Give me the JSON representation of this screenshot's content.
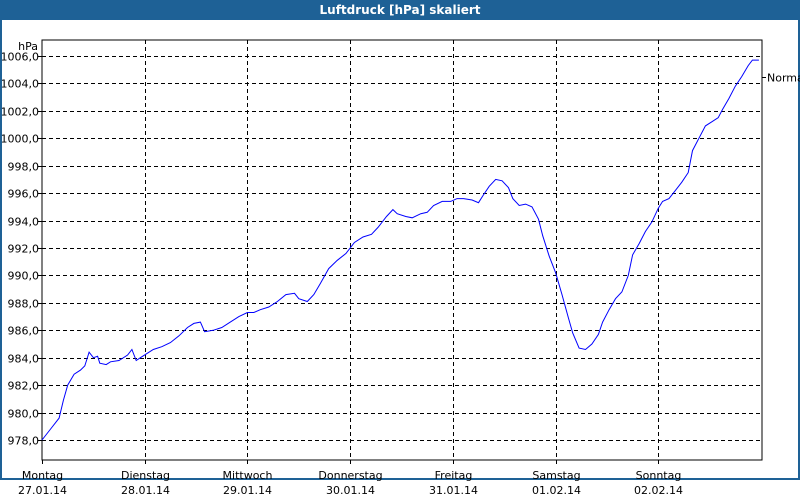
{
  "window": {
    "title": "Luftdruck [hPa] skaliert"
  },
  "colors": {
    "titlebar": "#1e6196",
    "line": "#0000ff",
    "grid": "#000000"
  },
  "chart_data": {
    "type": "line",
    "title": "Luftdruck [hPa] skaliert",
    "ylabel": "hPa",
    "ylim": [
      976.5,
      1007.2
    ],
    "yticks": [
      978,
      980,
      982,
      984,
      986,
      988,
      990,
      992,
      994,
      996,
      998,
      1000,
      1002,
      1004,
      1006
    ],
    "ytick_labels": [
      "978,0",
      "980,0",
      "982,0",
      "984,0",
      "986,0",
      "988,0",
      "990,0",
      "992,0",
      "994,0",
      "996,0",
      "998,0",
      "1000,0",
      "1002,0",
      "1004,0",
      "1006,0"
    ],
    "xlim": [
      "2014-01-27T00:00",
      "2014-02-03T00:00"
    ],
    "xticks": [
      {
        "day": "Montag",
        "date": "27.01.14",
        "t": "2014-01-27T00:00"
      },
      {
        "day": "Dienstag",
        "date": "28.01.14",
        "t": "2014-01-28T00:00"
      },
      {
        "day": "Mittwoch",
        "date": "29.01.14",
        "t": "2014-01-29T00:00"
      },
      {
        "day": "Donnerstag",
        "date": "30.01.14",
        "t": "2014-01-30T00:00"
      },
      {
        "day": "Freitag",
        "date": "31.01.14",
        "t": "2014-01-31T00:00"
      },
      {
        "day": "Samstag",
        "date": "01.02.14",
        "t": "2014-02-01T00:00"
      },
      {
        "day": "Sonntag",
        "date": "02.02.14",
        "t": "2014-02-02T00:00"
      }
    ],
    "grid": true,
    "reference": {
      "label": "Normal",
      "value": 1004.5
    },
    "series": [
      {
        "points": [
          [
            "2014-01-27T00:00",
            978.0
          ],
          [
            "2014-01-27T02:00",
            978.8
          ],
          [
            "2014-01-27T04:00",
            979.6
          ],
          [
            "2014-01-27T05:00",
            980.9
          ],
          [
            "2014-01-27T06:00",
            982.0
          ],
          [
            "2014-01-27T07:30",
            982.8
          ],
          [
            "2014-01-27T09:00",
            983.1
          ],
          [
            "2014-01-27T10:00",
            983.4
          ],
          [
            "2014-01-27T11:00",
            984.4
          ],
          [
            "2014-01-27T12:00",
            984.0
          ],
          [
            "2014-01-27T13:00",
            984.1
          ],
          [
            "2014-01-27T13:30",
            983.6
          ],
          [
            "2014-01-27T15:00",
            983.5
          ],
          [
            "2014-01-27T16:00",
            983.7
          ],
          [
            "2014-01-27T18:00",
            983.8
          ],
          [
            "2014-01-27T20:00",
            984.2
          ],
          [
            "2014-01-27T21:00",
            984.6
          ],
          [
            "2014-01-27T22:00",
            983.8
          ],
          [
            "2014-01-27T23:00",
            984.0
          ],
          [
            "2014-01-28T01:00",
            984.4
          ],
          [
            "2014-01-28T02:00",
            984.6
          ],
          [
            "2014-01-28T04:00",
            984.8
          ],
          [
            "2014-01-28T06:00",
            985.1
          ],
          [
            "2014-01-28T08:00",
            985.6
          ],
          [
            "2014-01-28T10:00",
            986.2
          ],
          [
            "2014-01-28T11:30",
            986.5
          ],
          [
            "2014-01-28T13:00",
            986.6
          ],
          [
            "2014-01-28T14:00",
            985.9
          ],
          [
            "2014-01-28T16:00",
            986.0
          ],
          [
            "2014-01-28T18:00",
            986.2
          ],
          [
            "2014-01-28T20:00",
            986.6
          ],
          [
            "2014-01-28T22:00",
            987.0
          ],
          [
            "2014-01-29T00:00",
            987.3
          ],
          [
            "2014-01-29T01:30",
            987.3
          ],
          [
            "2014-01-29T03:00",
            987.5
          ],
          [
            "2014-01-29T05:00",
            987.7
          ],
          [
            "2014-01-29T07:00",
            988.1
          ],
          [
            "2014-01-29T09:00",
            988.6
          ],
          [
            "2014-01-29T11:00",
            988.7
          ],
          [
            "2014-01-29T12:00",
            988.3
          ],
          [
            "2014-01-29T14:00",
            988.1
          ],
          [
            "2014-01-29T15:30",
            988.6
          ],
          [
            "2014-01-29T17:00",
            989.4
          ],
          [
            "2014-01-29T19:00",
            990.5
          ],
          [
            "2014-01-29T21:00",
            991.1
          ],
          [
            "2014-01-29T23:00",
            991.6
          ],
          [
            "2014-01-30T01:00",
            992.4
          ],
          [
            "2014-01-30T03:00",
            992.8
          ],
          [
            "2014-01-30T05:00",
            993.0
          ],
          [
            "2014-01-30T06:30",
            993.5
          ],
          [
            "2014-01-30T08:30",
            994.3
          ],
          [
            "2014-01-30T10:00",
            994.8
          ],
          [
            "2014-01-30T11:00",
            994.5
          ],
          [
            "2014-01-30T13:00",
            994.3
          ],
          [
            "2014-01-30T14:30",
            994.2
          ],
          [
            "2014-01-30T16:30",
            994.5
          ],
          [
            "2014-01-30T18:00",
            994.6
          ],
          [
            "2014-01-30T19:30",
            995.1
          ],
          [
            "2014-01-30T21:30",
            995.4
          ],
          [
            "2014-01-30T23:30",
            995.4
          ],
          [
            "2014-01-31T01:00",
            995.6
          ],
          [
            "2014-01-31T02:30",
            995.6
          ],
          [
            "2014-01-31T04:30",
            995.5
          ],
          [
            "2014-01-31T06:00",
            995.3
          ],
          [
            "2014-01-31T07:00",
            995.8
          ],
          [
            "2014-01-31T08:30",
            996.5
          ],
          [
            "2014-01-31T10:00",
            997.0
          ],
          [
            "2014-01-31T11:30",
            996.9
          ],
          [
            "2014-01-31T13:00",
            996.4
          ],
          [
            "2014-01-31T14:00",
            995.6
          ],
          [
            "2014-01-31T15:30",
            995.1
          ],
          [
            "2014-01-31T17:00",
            995.2
          ],
          [
            "2014-01-31T18:30",
            995.0
          ],
          [
            "2014-01-31T20:00",
            994.1
          ],
          [
            "2014-01-31T21:00",
            992.9
          ],
          [
            "2014-01-31T22:30",
            991.4
          ],
          [
            "2014-02-01T00:00",
            990.2
          ],
          [
            "2014-02-01T01:30",
            988.6
          ],
          [
            "2014-02-01T03:00",
            986.9
          ],
          [
            "2014-02-01T04:00",
            985.8
          ],
          [
            "2014-02-01T05:30",
            984.7
          ],
          [
            "2014-02-01T07:00",
            984.6
          ],
          [
            "2014-02-01T08:30",
            985.0
          ],
          [
            "2014-02-01T10:00",
            985.7
          ],
          [
            "2014-02-01T11:00",
            986.6
          ],
          [
            "2014-02-01T12:30",
            987.5
          ],
          [
            "2014-02-01T14:00",
            988.3
          ],
          [
            "2014-02-01T15:30",
            988.8
          ],
          [
            "2014-02-01T17:00",
            990.0
          ],
          [
            "2014-02-01T18:00",
            991.5
          ],
          [
            "2014-02-01T19:30",
            992.3
          ],
          [
            "2014-02-01T21:00",
            993.2
          ],
          [
            "2014-02-01T22:30",
            993.9
          ],
          [
            "2014-02-02T00:00",
            994.9
          ],
          [
            "2014-02-02T01:00",
            995.4
          ],
          [
            "2014-02-02T02:30",
            995.6
          ],
          [
            "2014-02-02T04:00",
            996.2
          ],
          [
            "2014-02-02T05:30",
            996.8
          ],
          [
            "2014-02-02T07:00",
            997.5
          ],
          [
            "2014-02-02T08:00",
            999.1
          ],
          [
            "2014-02-02T09:30",
            1000.0
          ],
          [
            "2014-02-02T11:00",
            1000.9
          ],
          [
            "2014-02-02T12:30",
            1001.2
          ],
          [
            "2014-02-02T14:00",
            1001.5
          ],
          [
            "2014-02-02T15:00",
            1002.1
          ],
          [
            "2014-02-02T16:30",
            1002.9
          ],
          [
            "2014-02-02T18:00",
            1003.8
          ],
          [
            "2014-02-02T19:30",
            1004.5
          ],
          [
            "2014-02-02T21:00",
            1005.3
          ],
          [
            "2014-02-02T22:00",
            1005.7
          ],
          [
            "2014-02-02T23:30",
            1005.7
          ]
        ]
      }
    ]
  }
}
